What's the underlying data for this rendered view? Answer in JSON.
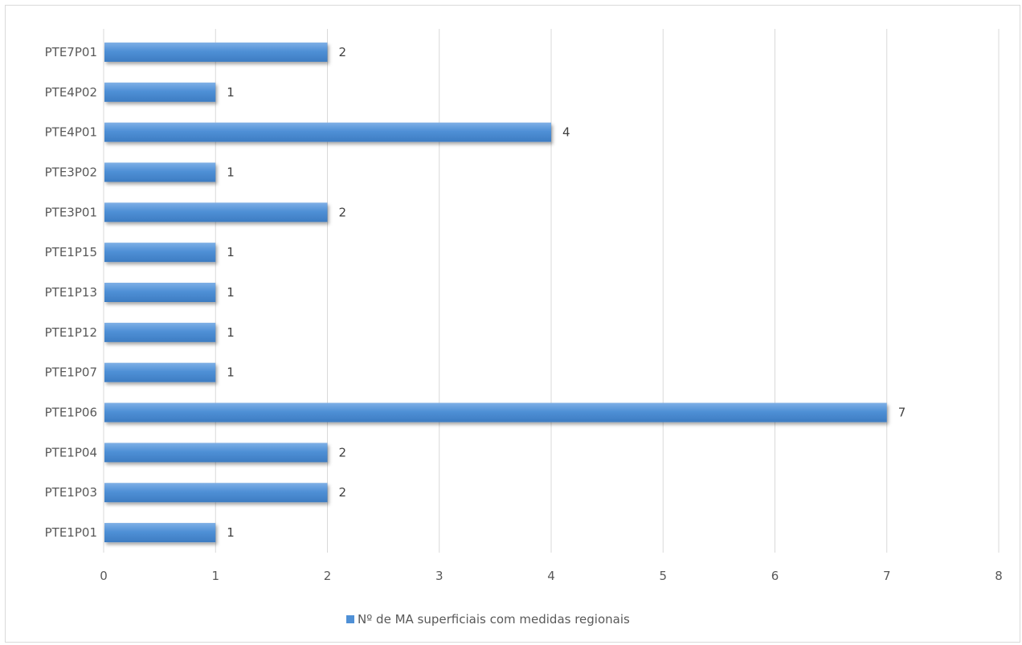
{
  "chart_data": {
    "type": "bar",
    "orientation": "horizontal",
    "categories": [
      "PTE1P01",
      "PTE1P03",
      "PTE1P04",
      "PTE1P06",
      "PTE1P07",
      "PTE1P12",
      "PTE1P13",
      "PTE1P15",
      "PTE3P01",
      "PTE3P02",
      "PTE4P01",
      "PTE4P02",
      "PTE7P01"
    ],
    "series": [
      {
        "name": "Nº de MA superficiais com medidas regionais",
        "values": [
          1,
          2,
          2,
          7,
          1,
          1,
          1,
          1,
          2,
          1,
          4,
          1,
          2
        ],
        "color": "#4f90d6"
      }
    ],
    "xlim": [
      0,
      8
    ],
    "xticks": [
      "0",
      "1",
      "2",
      "3",
      "4",
      "5",
      "6",
      "7",
      "8"
    ],
    "grid": "vertical",
    "legend_position": "bottom",
    "data_labels": true
  }
}
